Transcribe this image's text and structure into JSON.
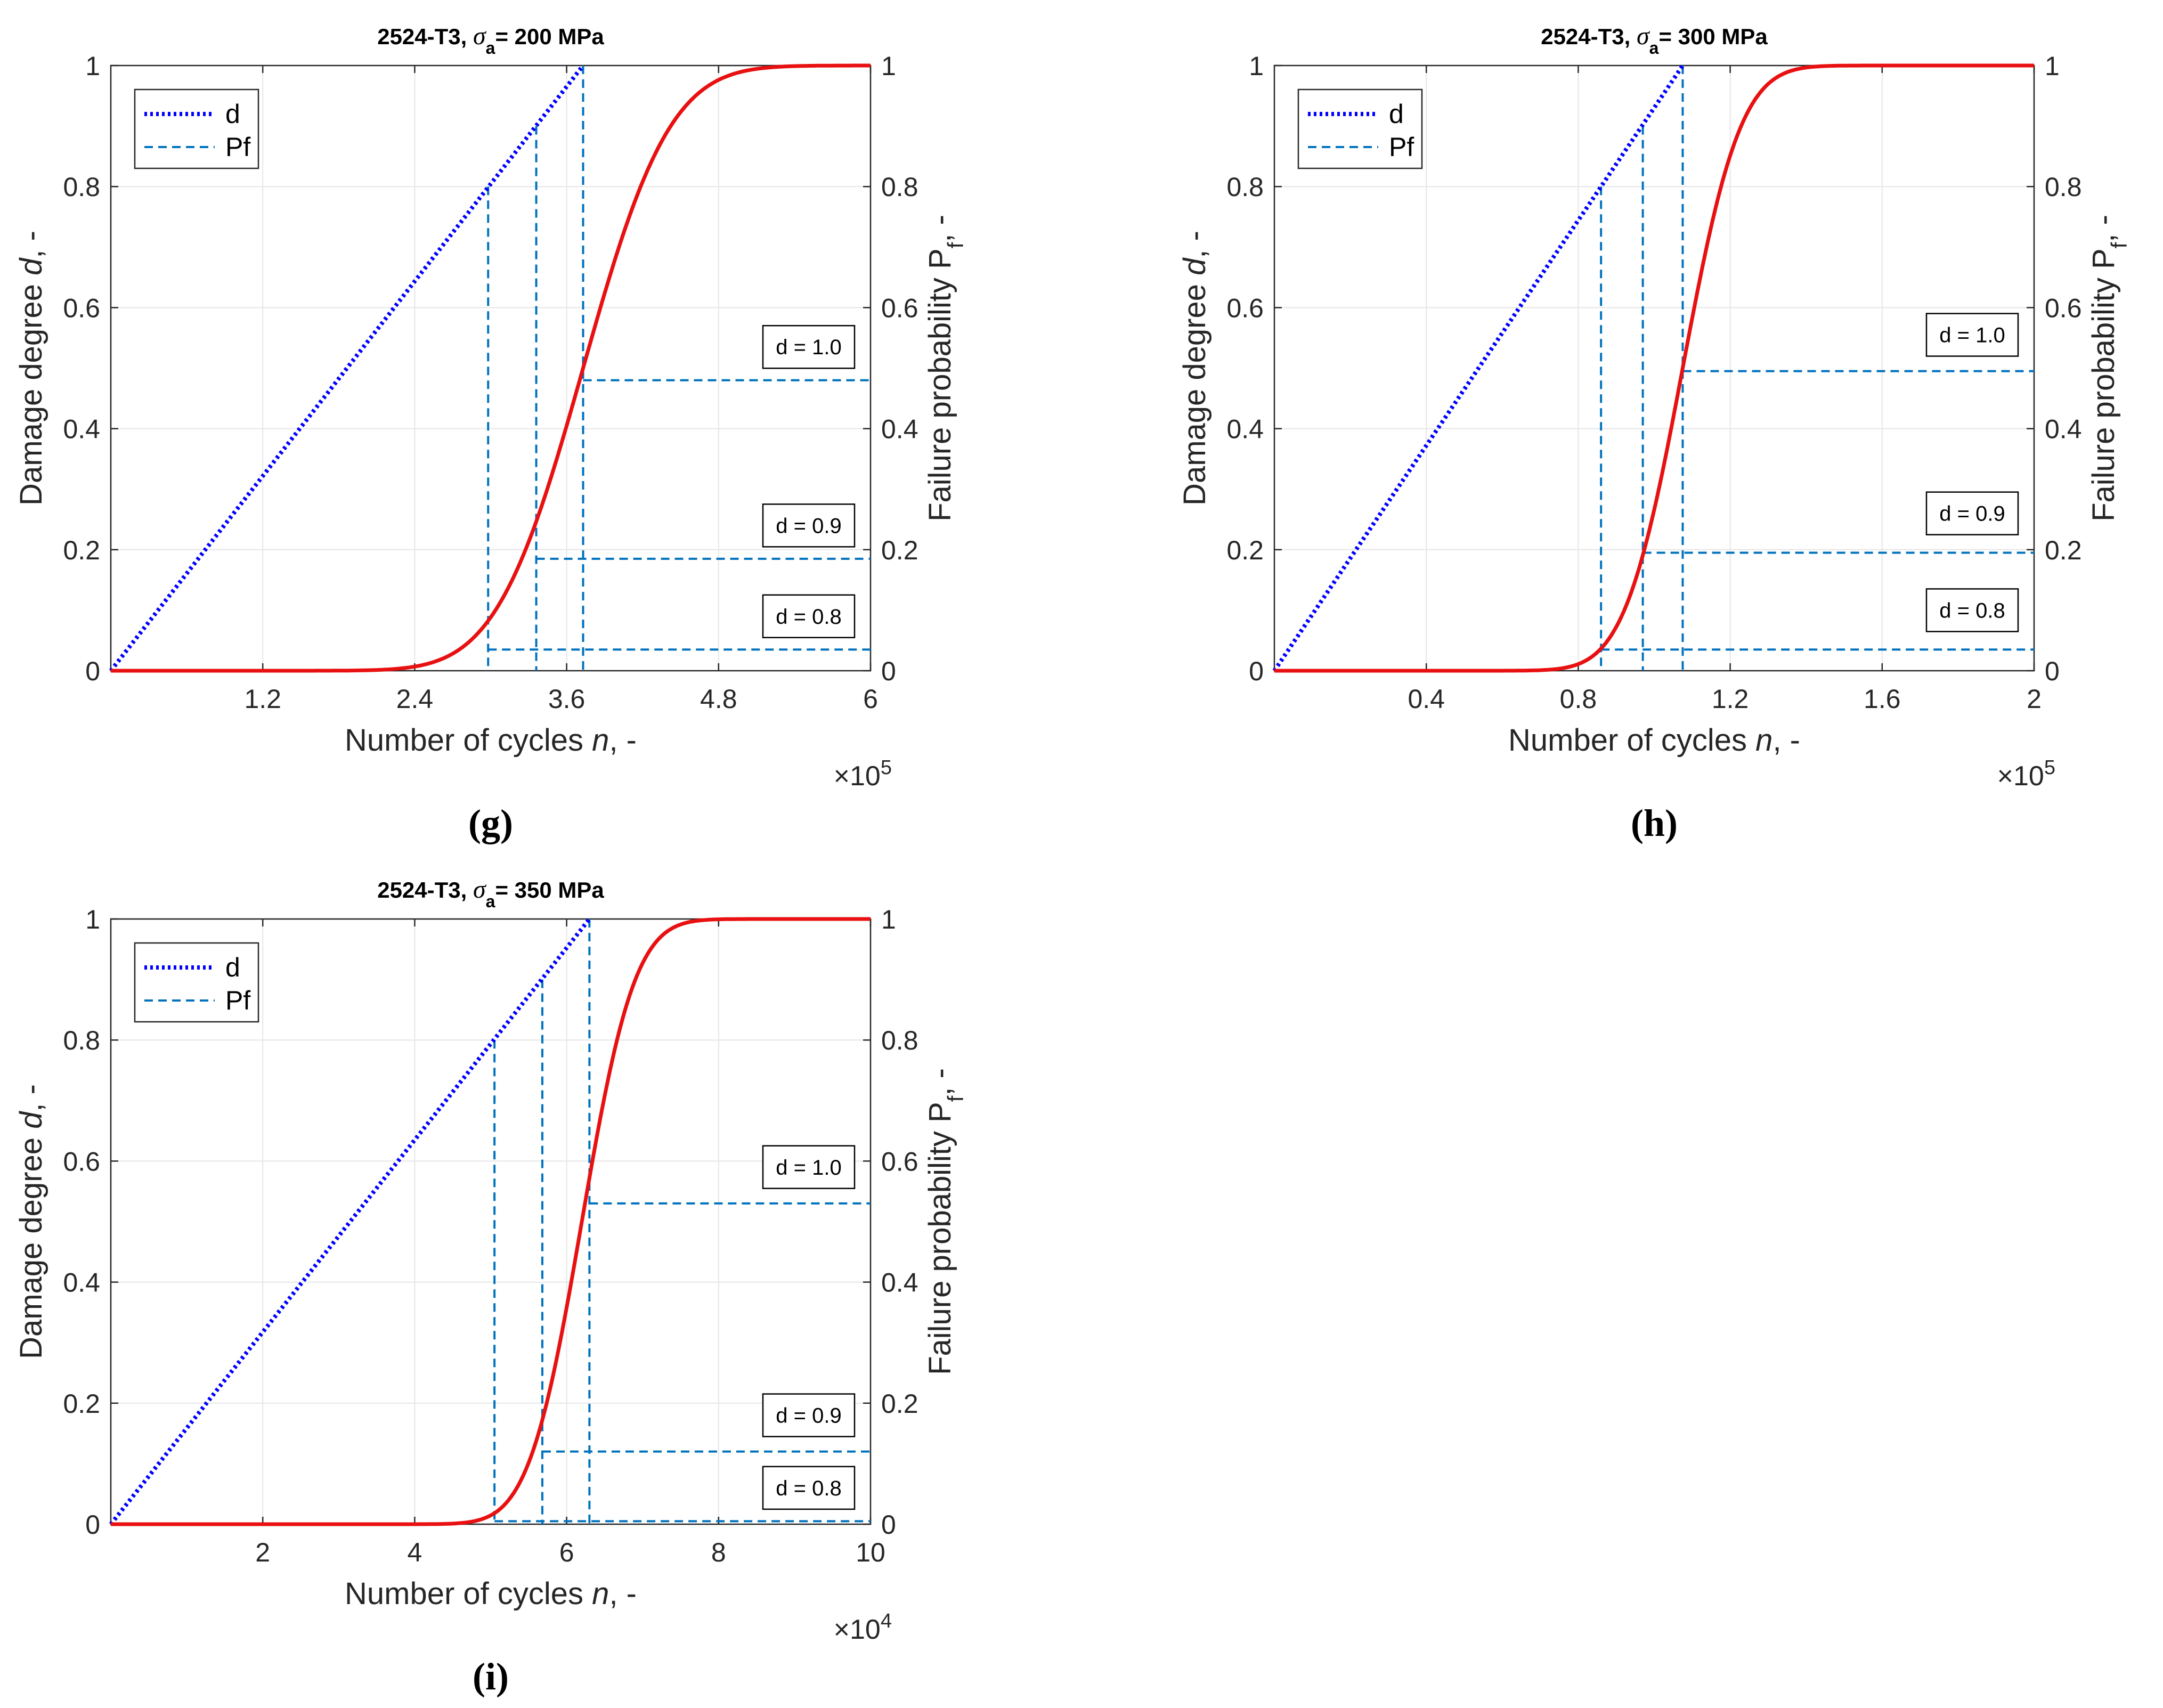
{
  "colors": {
    "d_line": "#0000ff",
    "pf_line": "#e81010",
    "dashed": "#0072bd",
    "grid": "#e6e6e6",
    "axis": "#262626"
  },
  "chart_data": [
    {
      "type": "line",
      "panel": "g",
      "caption": "(g)",
      "title_prefix": "2524-T3, ",
      "title_sigma": "σ",
      "title_sub": "a",
      "title_suffix": "= 200 MPa",
      "xlabel_prefix": "Number of cycles ",
      "xlabel_var": "n",
      "xlabel_suffix": ", -",
      "ylabel_left_prefix": "Damage degree ",
      "ylabel_left_var": "d",
      "ylabel_left_suffix": ", -",
      "ylabel_right_prefix": "Failure probability P",
      "ylabel_right_sub": "f",
      "ylabel_right_suffix": ", -",
      "x_multiplier_base": "×10",
      "x_multiplier_exp": "5",
      "xlim": [
        0,
        6
      ],
      "ylim": [
        0,
        1
      ],
      "xticks": [
        1.2,
        2.4,
        3.6,
        4.8,
        6
      ],
      "xtick_labels": [
        "1.2",
        "2.4",
        "3.6",
        "4.8",
        "6"
      ],
      "yticks": [
        0,
        0.2,
        0.4,
        0.6,
        0.8,
        1
      ],
      "ytick_labels": [
        "0",
        "0.2",
        "0.4",
        "0.6",
        "0.8",
        "1"
      ],
      "legend": [
        "d",
        "Pf"
      ],
      "series_d": {
        "name": "d",
        "x": [
          0,
          3.73
        ],
        "y": [
          0,
          1
        ]
      },
      "series_pf": {
        "name": "Pf",
        "mu": 3.73,
        "sigma": 0.54,
        "x_start": 0,
        "x_end": 6
      },
      "markers": [
        {
          "label": "d = 0.8",
          "d": 0.8,
          "n": 2.98,
          "pf": 0.035,
          "box_y": 0.09
        },
        {
          "label": "d = 0.9",
          "d": 0.9,
          "n": 3.36,
          "pf": 0.185,
          "box_y": 0.24
        },
        {
          "label": "d = 1.0",
          "d": 1.0,
          "n": 3.73,
          "pf": 0.48,
          "box_y": 0.535
        }
      ]
    },
    {
      "type": "line",
      "panel": "h",
      "caption": "(h)",
      "title_prefix": "2524-T3, ",
      "title_sigma": "σ",
      "title_sub": "a",
      "title_suffix": "= 300 MPa",
      "xlabel_prefix": "Number of cycles ",
      "xlabel_var": "n",
      "xlabel_suffix": ", -",
      "ylabel_left_prefix": "Damage degree ",
      "ylabel_left_var": "d",
      "ylabel_left_suffix": ", -",
      "ylabel_right_prefix": "Failure probability P",
      "ylabel_right_sub": "f",
      "ylabel_right_suffix": ", -",
      "x_multiplier_base": "×10",
      "x_multiplier_exp": "5",
      "xlim": [
        0,
        2
      ],
      "ylim": [
        0,
        1
      ],
      "xticks": [
        0.4,
        0.8,
        1.2,
        1.6,
        2
      ],
      "xtick_labels": [
        "0.4",
        "0.8",
        "1.2",
        "1.6",
        "2"
      ],
      "yticks": [
        0,
        0.2,
        0.4,
        0.6,
        0.8,
        1
      ],
      "ytick_labels": [
        "0",
        "0.2",
        "0.4",
        "0.6",
        "0.8",
        "1"
      ],
      "legend": [
        "d",
        "Pf"
      ],
      "series_d": {
        "name": "d",
        "x": [
          0,
          1.075
        ],
        "y": [
          0,
          1
        ]
      },
      "series_pf": {
        "name": "Pf",
        "mu": 1.075,
        "sigma": 0.12,
        "x_start": 0,
        "x_end": 2
      },
      "markers": [
        {
          "label": "d = 0.8",
          "d": 0.8,
          "n": 0.86,
          "pf": 0.035,
          "box_y": 0.1
        },
        {
          "label": "d = 0.9",
          "d": 0.9,
          "n": 0.97,
          "pf": 0.195,
          "box_y": 0.26
        },
        {
          "label": "d = 1.0",
          "d": 1.0,
          "n": 1.075,
          "pf": 0.495,
          "box_y": 0.555
        }
      ]
    },
    {
      "type": "line",
      "panel": "i",
      "caption": "(i)",
      "title_prefix": "2524-T3, ",
      "title_sigma": "σ",
      "title_sub": "a",
      "title_suffix": "= 350 MPa",
      "xlabel_prefix": "Number of cycles ",
      "xlabel_var": "n",
      "xlabel_suffix": ", -",
      "ylabel_left_prefix": "Damage degree ",
      "ylabel_left_var": "d",
      "ylabel_left_suffix": ", -",
      "ylabel_right_prefix": "Failure probability P",
      "ylabel_right_sub": "f",
      "ylabel_right_suffix": ", -",
      "x_multiplier_base": "×10",
      "x_multiplier_exp": "4",
      "xlim": [
        0,
        10
      ],
      "ylim": [
        0,
        1
      ],
      "xticks": [
        2,
        4,
        6,
        8,
        10
      ],
      "xtick_labels": [
        "2",
        "4",
        "6",
        "8",
        "10"
      ],
      "yticks": [
        0,
        0.2,
        0.4,
        0.6,
        0.8,
        1
      ],
      "ytick_labels": [
        "0",
        "0.2",
        "0.4",
        "0.6",
        "0.8",
        "1"
      ],
      "legend": [
        "d",
        "Pf"
      ],
      "series_d": {
        "name": "d",
        "x": [
          0,
          6.3
        ],
        "y": [
          0,
          1
        ]
      },
      "series_pf": {
        "name": "Pf",
        "mu": 6.2,
        "sigma": 0.55,
        "x_start": 0,
        "x_end": 10
      },
      "markers": [
        {
          "label": "d = 0.8",
          "d": 0.8,
          "n": 5.05,
          "pf": 0.005,
          "box_y": 0.06
        },
        {
          "label": "d = 0.9",
          "d": 0.9,
          "n": 5.68,
          "pf": 0.12,
          "box_y": 0.18
        },
        {
          "label": "d = 1.0",
          "d": 1.0,
          "n": 6.3,
          "pf": 0.53,
          "box_y": 0.59
        }
      ]
    }
  ]
}
